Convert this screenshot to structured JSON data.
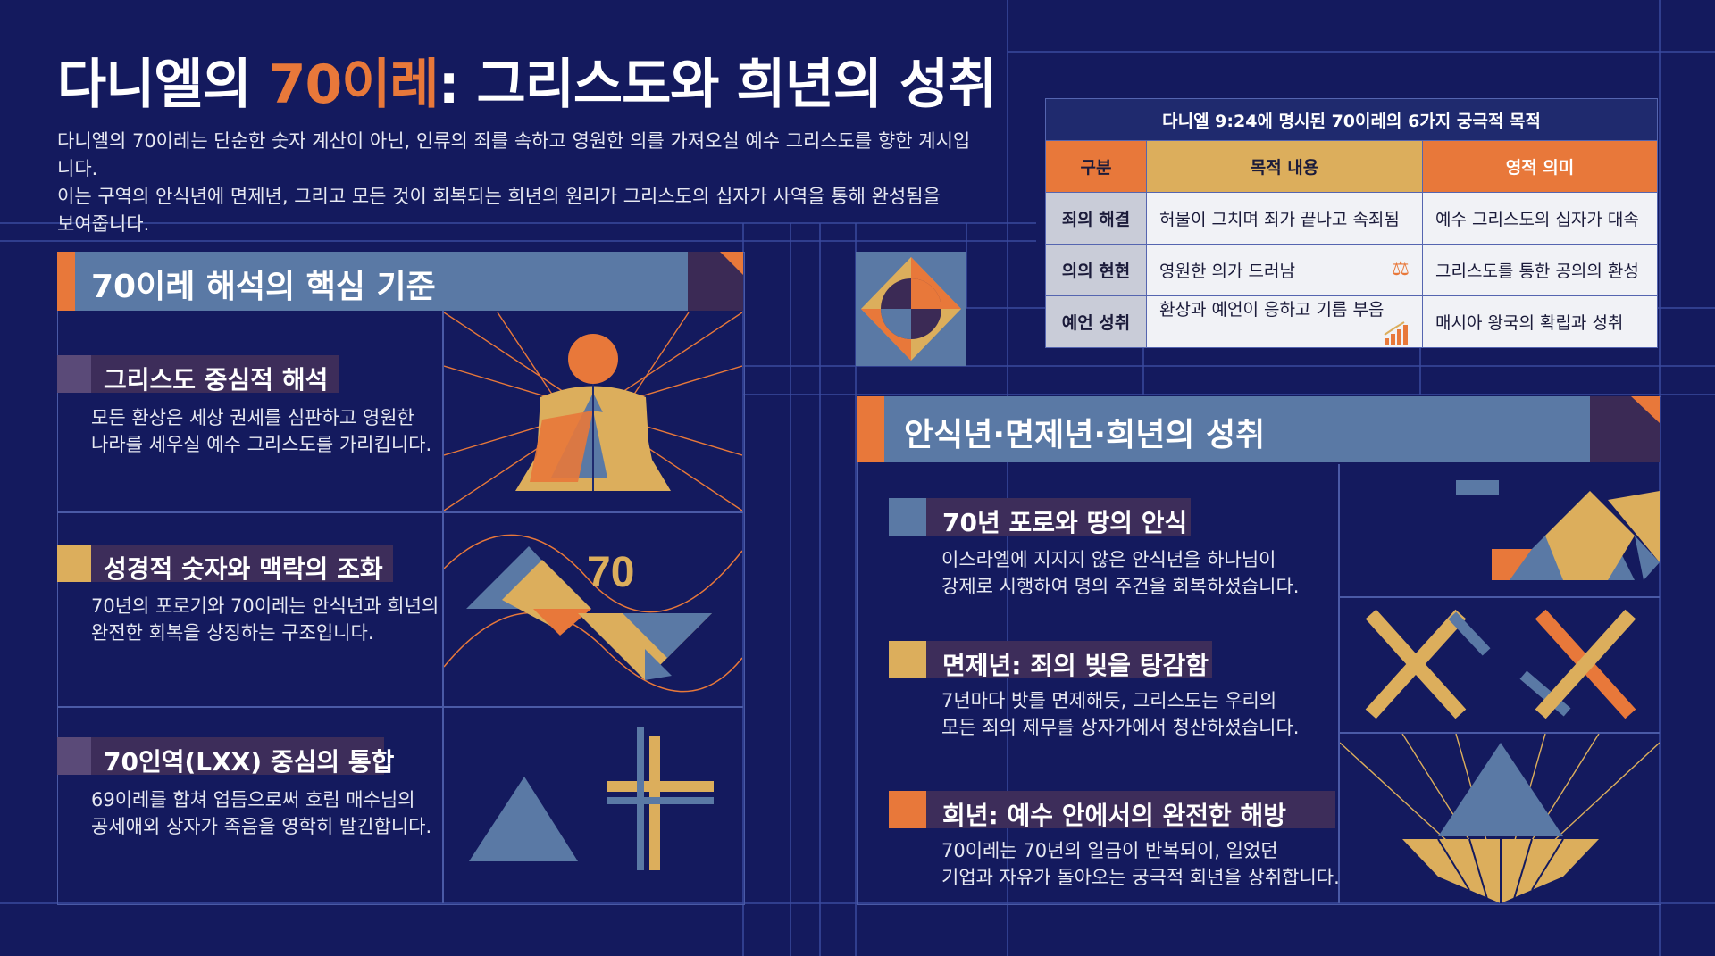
{
  "header": {
    "title_prefix": "다니엘의 ",
    "title_highlight": "70이레",
    "title_suffix": ": 그리스도와 희년의 성취",
    "intro_line1": "다니엘의 70이레는 단순한 숫자 계산이 아닌, 인류의 죄를 속하고 영원한 의를 가져오실 예수 그리스도를 향한 계시입니다.",
    "intro_line2": "이는 구역의 안식년에 면제년, 그리고 모든 것이 회복되는 희년의 원리가 그리스도의 십자가 사역을 통해 완성됨을",
    "intro_line3": "보여줍니다."
  },
  "table": {
    "caption": "다니엘 9:24에 명시된 70이레의 6가지 궁극적 목적",
    "headers": [
      "구분",
      "목적 내용",
      "영적 의미"
    ],
    "rows": [
      {
        "category": "죄의 해결",
        "content": "허물이 그치며 죄가 끝나고 속죄됨",
        "meaning": "예수 그리스도의 십자가 대속",
        "icon": ""
      },
      {
        "category": "의의 현현",
        "content": "영원한 의가 드러남",
        "meaning": "그리스도를 통한 공의의 환성",
        "icon": "scales-icon"
      },
      {
        "category": "예언 성취",
        "content": "환상과 예언이 응하고 기름 부음",
        "meaning": "매시아 왕국의 확립과 성취",
        "icon": "growth-chart-icon"
      }
    ]
  },
  "left_section": {
    "heading": "70이레 해석의 핵심 기준",
    "items": [
      {
        "title": "그리스도 중심적 해석",
        "line1": "모든 환상은 세상 권세를 심판하고 영원한",
        "line2": "나라를 세우실 예수 그리스도를 가리킵니다.",
        "mark_color": "#5a4a78"
      },
      {
        "title": "성경적 숫자와 맥락의 조화",
        "line1": "70년의 포로기와 70이레는 안식년과 희년의",
        "line2": "완전한 회복을 상징하는 구조입니다.",
        "mark_color": "#dcae5c"
      },
      {
        "title": "70인역(LXX) 중심의 통합",
        "line1": "69이레를 합쳐 업듬으로써 호림 매수님의",
        "line2": "공세애외 상자가 족음을 영학히 발긴합니다.",
        "mark_color": "#5a4a78"
      }
    ],
    "figure_number": "70"
  },
  "right_section": {
    "heading": "안식년·면제년·희년의 성취",
    "items": [
      {
        "title": "70년 포로와 땅의 안식",
        "line1": "이스라엘에 지지지 않은 안식년을 하나님이",
        "line2": "강제로 시행하여 명의 주건을 회복하셨습니다.",
        "mark_color": "#5a79a5"
      },
      {
        "title": "면제년: 죄의 빚을 탕감함",
        "line1": "7년마다 밧를 면제해듯, 그리스도는 우리의",
        "line2": "모든 죄의 제무를 상자가에서 청산하셨습니다.",
        "mark_color": "#dcae5c"
      },
      {
        "title": "희년: 예수 안에서의 완전한 해방",
        "line1": "70이레는 70년의 일금이 반복되이, 일었던",
        "line2": "기업과 자유가 돌아오는 궁극적 회년을 상취합니다.",
        "mark_color": "#e8783a"
      }
    ]
  },
  "colors": {
    "background": "#141a5e",
    "orange": "#e8783a",
    "gold": "#dcae5c",
    "steel_blue": "#5a79a5",
    "plum": "#3d2d5a"
  }
}
